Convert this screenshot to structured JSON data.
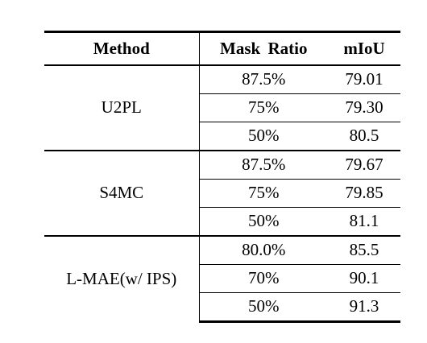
{
  "table": {
    "headers": {
      "method": "Method",
      "mask_ratio": "Mask Ratio",
      "miou": "mIoU"
    },
    "groups": [
      {
        "method": "U2PL",
        "rows": [
          {
            "mask_ratio": "87.5%",
            "miou": "79.01"
          },
          {
            "mask_ratio": "75%",
            "miou": "79.30"
          },
          {
            "mask_ratio": "50%",
            "miou": "80.5"
          }
        ]
      },
      {
        "method": "S4MC",
        "rows": [
          {
            "mask_ratio": "87.5%",
            "miou": "79.67"
          },
          {
            "mask_ratio": "75%",
            "miou": "79.85"
          },
          {
            "mask_ratio": "50%",
            "miou": "81.1"
          }
        ]
      },
      {
        "method": "L-MAE(w/ IPS)",
        "rows": [
          {
            "mask_ratio": "80.0%",
            "miou": "85.5"
          },
          {
            "mask_ratio": "70%",
            "miou": "90.1"
          },
          {
            "mask_ratio": "50%",
            "miou": "91.3"
          }
        ]
      }
    ]
  }
}
